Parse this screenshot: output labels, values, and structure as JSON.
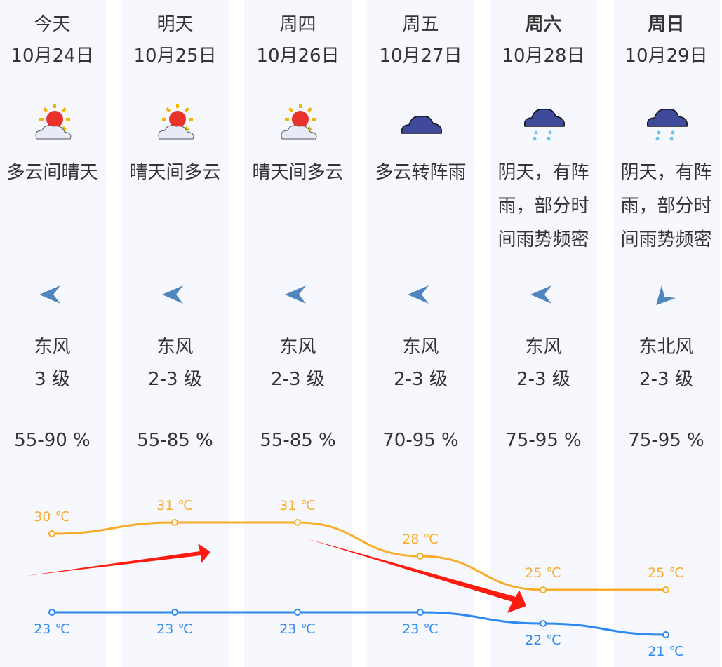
{
  "days": [
    {
      "weekday": "今天",
      "date": "10月24日",
      "bold": false,
      "icon": "partly-cloudy-sun-icon",
      "desc": "多云间晴天",
      "wind_dir": "东风",
      "wind_icon": "wind-east-icon",
      "wind_level": "3 级",
      "humidity": "55-90 %",
      "high": "30 ℃",
      "low": "23 ℃"
    },
    {
      "weekday": "明天",
      "date": "10月25日",
      "bold": false,
      "icon": "partly-cloudy-sun-icon",
      "desc": "晴天间多云",
      "wind_dir": "东风",
      "wind_icon": "wind-east-icon",
      "wind_level": "2-3 级",
      "humidity": "55-85 %",
      "high": "31 ℃",
      "low": "23 ℃"
    },
    {
      "weekday": "周四",
      "date": "10月26日",
      "bold": false,
      "icon": "partly-cloudy-sun-icon",
      "desc": "晴天间多云",
      "wind_dir": "东风",
      "wind_icon": "wind-east-icon",
      "wind_level": "2-3 级",
      "humidity": "55-85 %",
      "high": "31 ℃",
      "low": "23 ℃"
    },
    {
      "weekday": "周五",
      "date": "10月27日",
      "bold": false,
      "icon": "cloud-icon",
      "desc": "多云转阵雨",
      "wind_dir": "东风",
      "wind_icon": "wind-east-icon",
      "wind_level": "2-3 级",
      "humidity": "70-95 %",
      "high": "28 ℃",
      "low": "23 ℃"
    },
    {
      "weekday": "周六",
      "date": "10月28日",
      "bold": true,
      "icon": "rain-cloud-icon",
      "desc": "阴天，有阵\n雨，部分时\n间雨势频密",
      "wind_dir": "东风",
      "wind_icon": "wind-east-icon",
      "wind_level": "2-3 级",
      "humidity": "75-95 %",
      "high": "25 ℃",
      "low": "22 ℃"
    },
    {
      "weekday": "周日",
      "date": "10月29日",
      "bold": true,
      "icon": "rain-cloud-icon",
      "desc": "阴天，有阵\n雨，部分时\n间雨势频密",
      "wind_dir": "东北风",
      "wind_icon": "wind-northeast-icon",
      "wind_level": "2-3 级",
      "humidity": "75-95 %",
      "high": "25 ℃",
      "low": "21 ℃"
    }
  ],
  "chart_data": {
    "type": "line",
    "categories": [
      "10月24日",
      "10月25日",
      "10月26日",
      "10月27日",
      "10月28日",
      "10月29日"
    ],
    "series": [
      {
        "values": [
          30,
          31,
          31,
          28,
          25,
          25
        ],
        "color": "#f9ac2a"
      },
      {
        "values": [
          23,
          23,
          23,
          23,
          22,
          21
        ],
        "color": "#2d89f0"
      }
    ],
    "unit": "℃"
  },
  "annotations": {
    "arrow_color": "#ff1a10"
  }
}
